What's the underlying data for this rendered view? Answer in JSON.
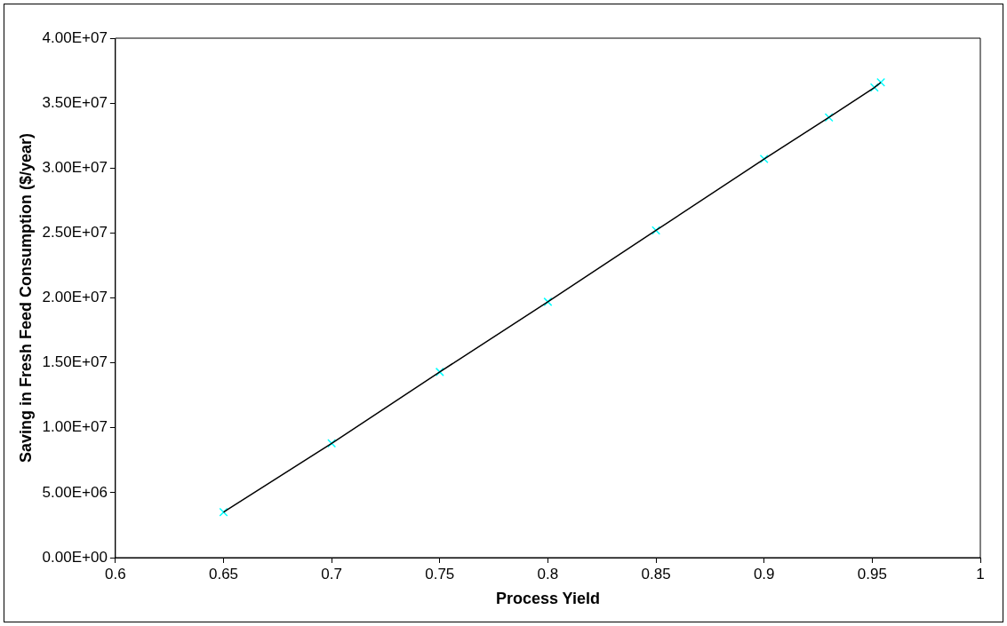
{
  "chart_data": {
    "type": "scatter",
    "xlabel": "Process Yield",
    "ylabel": "Saving in Fresh Feed Consumption ($/year)",
    "x": [
      0.65,
      0.7,
      0.75,
      0.8,
      0.85,
      0.9,
      0.93,
      0.951,
      0.954
    ],
    "series": [
      {
        "type": "line",
        "color": "#000000",
        "marker": "none",
        "values": [
          3500000,
          8800000,
          14300000,
          19700000,
          25200000,
          30700000,
          33900000,
          36200000,
          36600000
        ]
      },
      {
        "type": "scatter",
        "color": "#00ffff",
        "marker": "cross",
        "values": [
          3500000,
          8800000,
          14300000,
          19700000,
          25200000,
          30700000,
          33900000,
          36200000,
          36600000
        ]
      }
    ],
    "xlim": [
      0.6,
      1
    ],
    "xticks": [
      0.6,
      0.65,
      0.7,
      0.75,
      0.8,
      0.85,
      0.9,
      0.95,
      1
    ],
    "ylim": [
      0,
      40000000
    ],
    "yticks": [
      {
        "value": 0,
        "label": "0.00E+00"
      },
      {
        "value": 5000000,
        "label": "5.00E+06"
      },
      {
        "value": 10000000,
        "label": "1.00E+07"
      },
      {
        "value": 15000000,
        "label": "1.50E+07"
      },
      {
        "value": 20000000,
        "label": "2.00E+07"
      },
      {
        "value": 25000000,
        "label": "2.50E+07"
      },
      {
        "value": 30000000,
        "label": "3.00E+07"
      },
      {
        "value": 35000000,
        "label": "3.50E+07"
      },
      {
        "value": 40000000,
        "label": "4.00E+07"
      }
    ],
    "grid": false,
    "legend": false
  }
}
